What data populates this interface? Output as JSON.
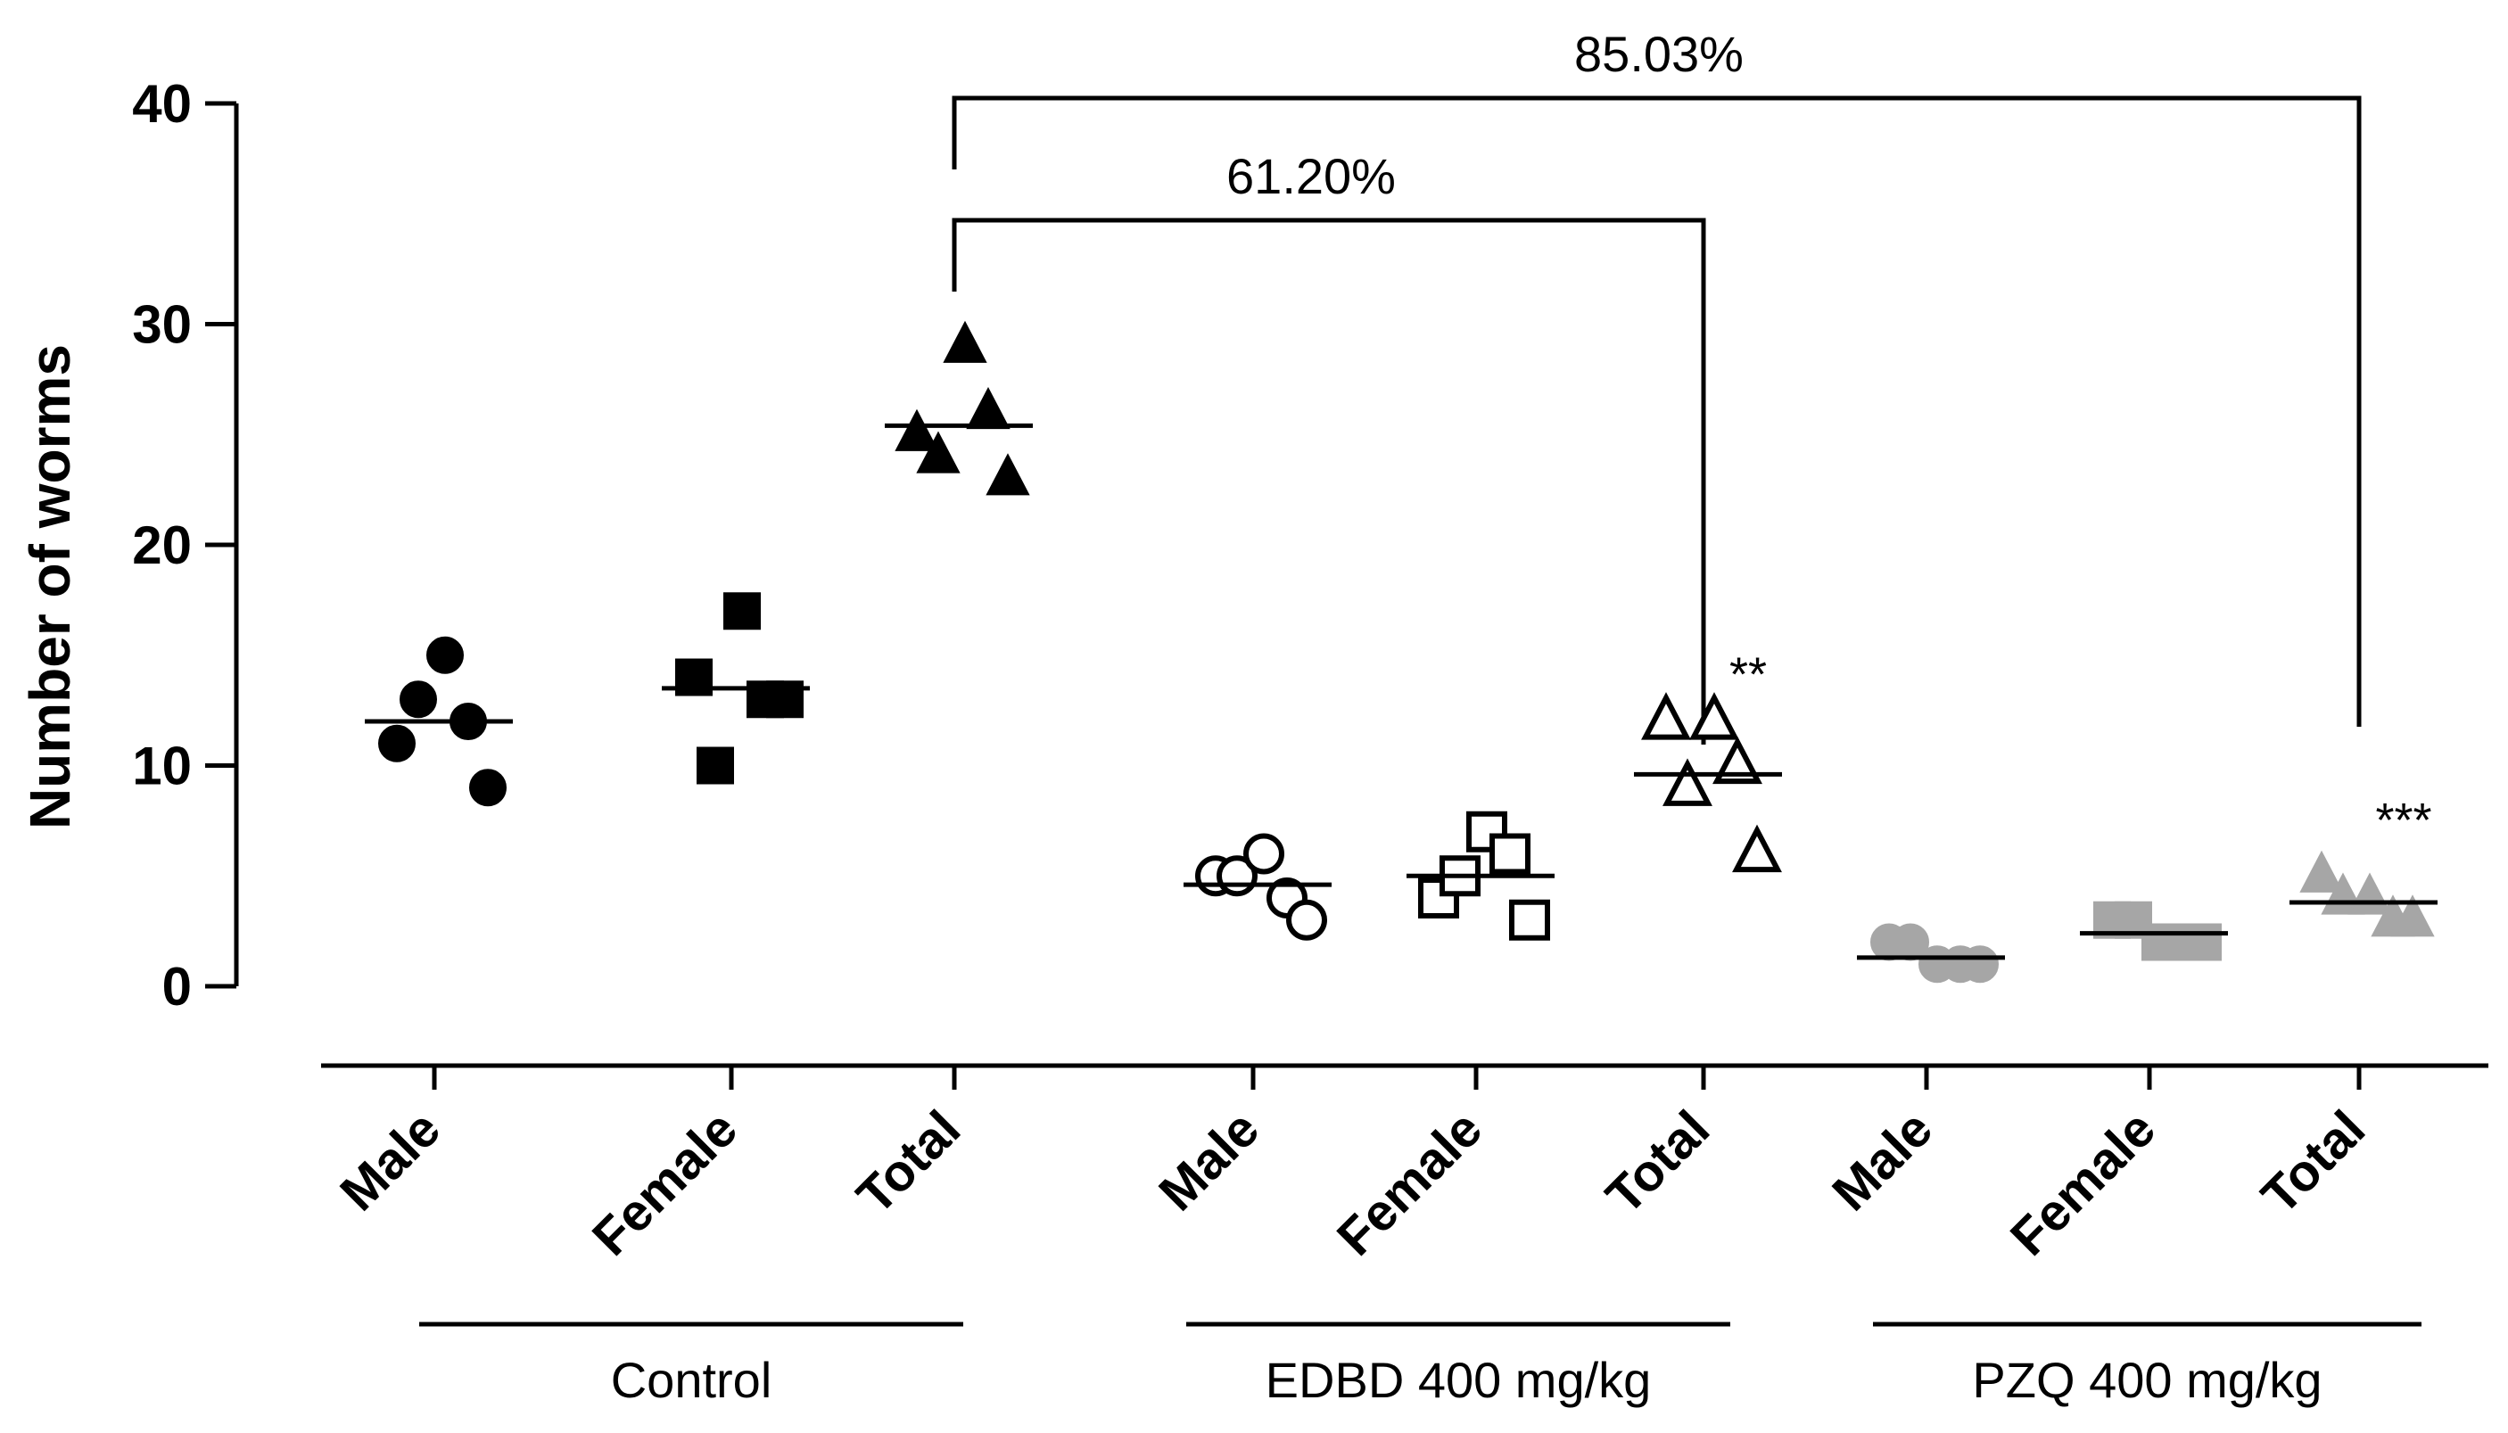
{
  "chart_data": {
    "type": "scatter",
    "title": "",
    "xlabel": "",
    "ylabel": "Number of worms",
    "ylim": [
      0,
      40
    ],
    "yticks": [
      0,
      10,
      20,
      30,
      40
    ],
    "categories": [
      "Male",
      "Female",
      "Total",
      "Male",
      "Female",
      "Total",
      "Male",
      "Female",
      "Total"
    ],
    "groups": [
      {
        "name": "Control",
        "categories": [
          0,
          1,
          2
        ]
      },
      {
        "name": "EDBD 400 mg/kg",
        "categories": [
          3,
          4,
          5
        ]
      },
      {
        "name": "PZQ 400 mg/kg",
        "categories": [
          6,
          7,
          8
        ]
      }
    ],
    "series": [
      {
        "group": "Control",
        "category": "Male",
        "marker": "circle",
        "fill": "#000000",
        "values": [
          11,
          13,
          15,
          12,
          9
        ],
        "median": 12
      },
      {
        "group": "Control",
        "category": "Female",
        "marker": "square",
        "fill": "#000000",
        "values": [
          14,
          10,
          17,
          13,
          13
        ],
        "median": 13.5
      },
      {
        "group": "Control",
        "category": "Total",
        "marker": "triangle",
        "fill": "#000000",
        "values": [
          25,
          24,
          29,
          26,
          23
        ],
        "median": 25.4
      },
      {
        "group": "EDBD 400 mg/kg",
        "category": "Male",
        "marker": "circle-open",
        "fill": "none",
        "values": [
          5,
          5,
          6,
          4,
          3
        ],
        "median": 4.6
      },
      {
        "group": "EDBD 400 mg/kg",
        "category": "Female",
        "marker": "square-open",
        "fill": "none",
        "values": [
          4,
          5,
          7,
          6,
          3
        ],
        "median": 5
      },
      {
        "group": "EDBD 400 mg/kg",
        "category": "Total",
        "marker": "triangle-open",
        "fill": "none",
        "values": [
          12,
          9,
          12,
          10,
          6
        ],
        "median": 9.6
      },
      {
        "group": "PZQ 400 mg/kg",
        "category": "Male",
        "marker": "circle",
        "fill": "#a6a6a6",
        "values": [
          2,
          2,
          1,
          1,
          1
        ],
        "median": 1.3
      },
      {
        "group": "PZQ 400 mg/kg",
        "category": "Female",
        "marker": "square",
        "fill": "#a6a6a6",
        "values": [
          3,
          3,
          2,
          2,
          2
        ],
        "median": 2.4
      },
      {
        "group": "PZQ 400 mg/kg",
        "category": "Total",
        "marker": "triangle",
        "fill": "#a6a6a6",
        "values": [
          5,
          4,
          4,
          3,
          3
        ],
        "median": 3.8
      }
    ],
    "annotations": [
      {
        "text": "61.20%",
        "from_category": 2,
        "to_category": 5,
        "type": "bracket"
      },
      {
        "text": "85.03%",
        "from_category": 2,
        "to_category": 8,
        "type": "bracket"
      },
      {
        "text": "**",
        "category": 5,
        "value": 14.6,
        "type": "significance"
      },
      {
        "text": "***",
        "category": 8,
        "value": 8.0,
        "type": "significance"
      }
    ]
  }
}
